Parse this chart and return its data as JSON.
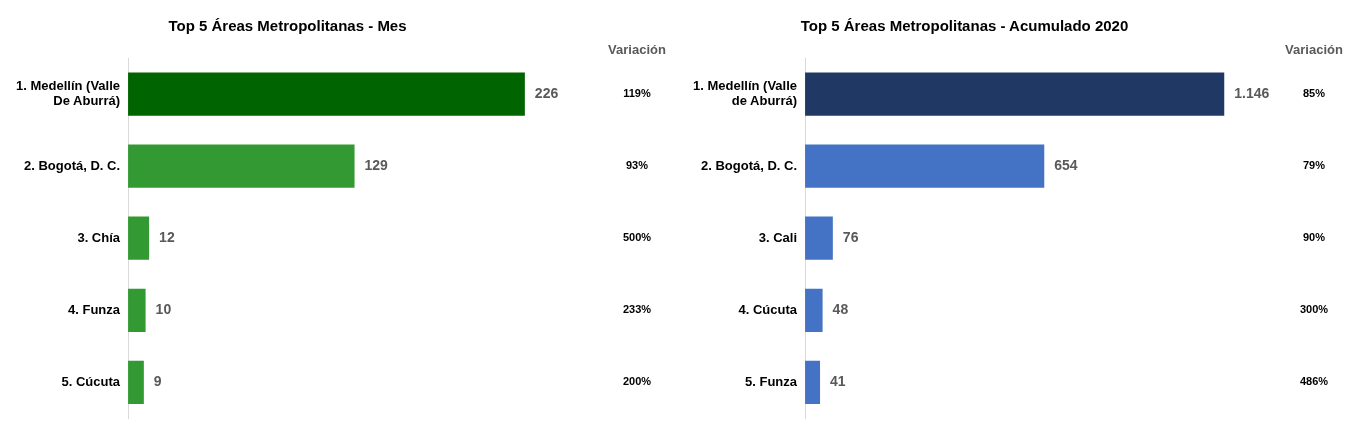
{
  "chart_data": [
    {
      "type": "bar",
      "orientation": "horizontal",
      "title": "Top 5 Áreas Metropolitanas - Mes",
      "categories": [
        "1. Medellín (Valle De Aburrá)",
        "2. Bogotá, D. C.",
        "3. Chía",
        "4. Funza",
        "5. Cúcuta"
      ],
      "values": [
        226,
        129,
        12,
        10,
        9
      ],
      "colors": [
        "#006400",
        "#339933",
        "#339933",
        "#339933",
        "#339933"
      ],
      "data_labels": true,
      "legend": false,
      "tick_labels": "y",
      "annotations": [
        "Variación",
        "119%",
        "93%",
        "500%",
        "233%",
        "200%"
      ]
    },
    {
      "type": "bar",
      "orientation": "horizontal",
      "title": "Top 5 Áreas Metropolitanas - Acumulado 2020",
      "categories": [
        "1. Medellín (Valle de Aburrá)",
        "2. Bogotá, D. C.",
        "3. Cali",
        "4. Cúcuta",
        "5. Funza"
      ],
      "values": [
        1146,
        654,
        76,
        48,
        41
      ],
      "value_labels": [
        "1.146",
        "654",
        "76",
        "48",
        "41"
      ],
      "colors": [
        "#203864",
        "#4472c4",
        "#4472c4",
        "#4472c4",
        "#4472c4"
      ],
      "legend": false,
      "tick_labels": "y",
      "annotations": [
        "Variación",
        "85%",
        "79%",
        "90%",
        "300%",
        "486%"
      ]
    }
  ]
}
